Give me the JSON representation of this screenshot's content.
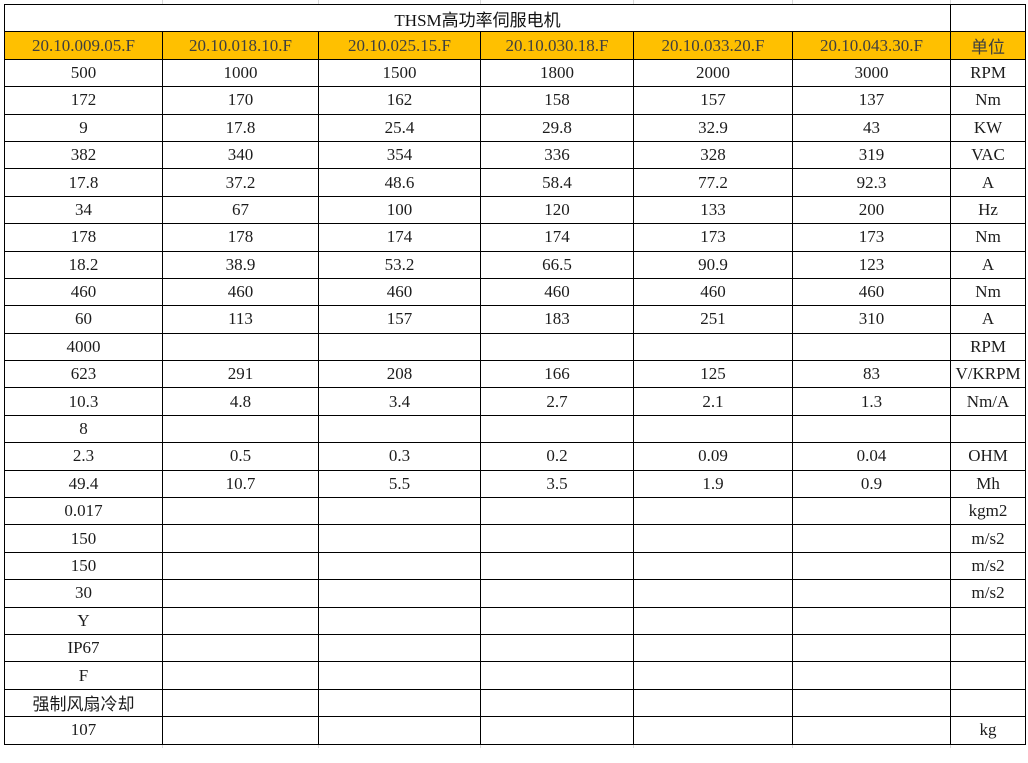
{
  "table": {
    "title": "THSM高功率伺服电机",
    "unit_header": "单位",
    "models": [
      "20.10.009.05.F",
      "20.10.018.10.F",
      "20.10.025.15.F",
      "20.10.030.18.F",
      "20.10.033.20.F",
      "20.10.043.30.F"
    ],
    "rows": [
      {
        "values": [
          "500",
          "1000",
          "1500",
          "1800",
          "2000",
          "3000"
        ],
        "unit": "RPM"
      },
      {
        "values": [
          "172",
          "170",
          "162",
          "158",
          "157",
          "137"
        ],
        "unit": "Nm"
      },
      {
        "values": [
          "9",
          "17.8",
          "25.4",
          "29.8",
          "32.9",
          "43"
        ],
        "unit": "KW"
      },
      {
        "values": [
          "382",
          "340",
          "354",
          "336",
          "328",
          "319"
        ],
        "unit": "VAC"
      },
      {
        "values": [
          "17.8",
          "37.2",
          "48.6",
          "58.4",
          "77.2",
          "92.3"
        ],
        "unit": "A"
      },
      {
        "values": [
          "34",
          "67",
          "100",
          "120",
          "133",
          "200"
        ],
        "unit": "Hz"
      },
      {
        "values": [
          "178",
          "178",
          "174",
          "174",
          "173",
          "173"
        ],
        "unit": "Nm"
      },
      {
        "values": [
          "18.2",
          "38.9",
          "53.2",
          "66.5",
          "90.9",
          "123"
        ],
        "unit": "A"
      },
      {
        "values": [
          "460",
          "460",
          "460",
          "460",
          "460",
          "460"
        ],
        "unit": "Nm"
      },
      {
        "values": [
          "60",
          "113",
          "157",
          "183",
          "251",
          "310"
        ],
        "unit": "A"
      },
      {
        "values": [
          "4000",
          "",
          "",
          "",
          "",
          ""
        ],
        "unit": "RPM"
      },
      {
        "values": [
          "623",
          "291",
          "208",
          "166",
          "125",
          "83"
        ],
        "unit": "V/KRPM"
      },
      {
        "values": [
          "10.3",
          "4.8",
          "3.4",
          "2.7",
          "2.1",
          "1.3"
        ],
        "unit": "Nm/A"
      },
      {
        "values": [
          "8",
          "",
          "",
          "",
          "",
          ""
        ],
        "unit": ""
      },
      {
        "values": [
          "2.3",
          "0.5",
          "0.3",
          "0.2",
          "0.09",
          "0.04"
        ],
        "unit": "OHM"
      },
      {
        "values": [
          "49.4",
          "10.7",
          "5.5",
          "3.5",
          "1.9",
          "0.9"
        ],
        "unit": "Mh"
      },
      {
        "values": [
          "0.017",
          "",
          "",
          "",
          "",
          ""
        ],
        "unit": "kgm2"
      },
      {
        "values": [
          "150",
          "",
          "",
          "",
          "",
          ""
        ],
        "unit": "m/s2"
      },
      {
        "values": [
          "150",
          "",
          "",
          "",
          "",
          ""
        ],
        "unit": "m/s2"
      },
      {
        "values": [
          "30",
          "",
          "",
          "",
          "",
          ""
        ],
        "unit": "m/s2"
      },
      {
        "values": [
          "Y",
          "",
          "",
          "",
          "",
          ""
        ],
        "unit": ""
      },
      {
        "values": [
          "IP67",
          "",
          "",
          "",
          "",
          ""
        ],
        "unit": ""
      },
      {
        "values": [
          "F",
          "",
          "",
          "",
          "",
          ""
        ],
        "unit": ""
      },
      {
        "values": [
          "强制风扇冷却",
          "",
          "",
          "",
          "",
          ""
        ],
        "unit": ""
      },
      {
        "values": [
          "107",
          "",
          "",
          "",
          "",
          ""
        ],
        "unit": "kg"
      }
    ],
    "colors": {
      "header_bg": "#FFC000",
      "header_text": "#3F3F3F",
      "border": "#000000",
      "cell_text": "#1C1C1C"
    }
  }
}
